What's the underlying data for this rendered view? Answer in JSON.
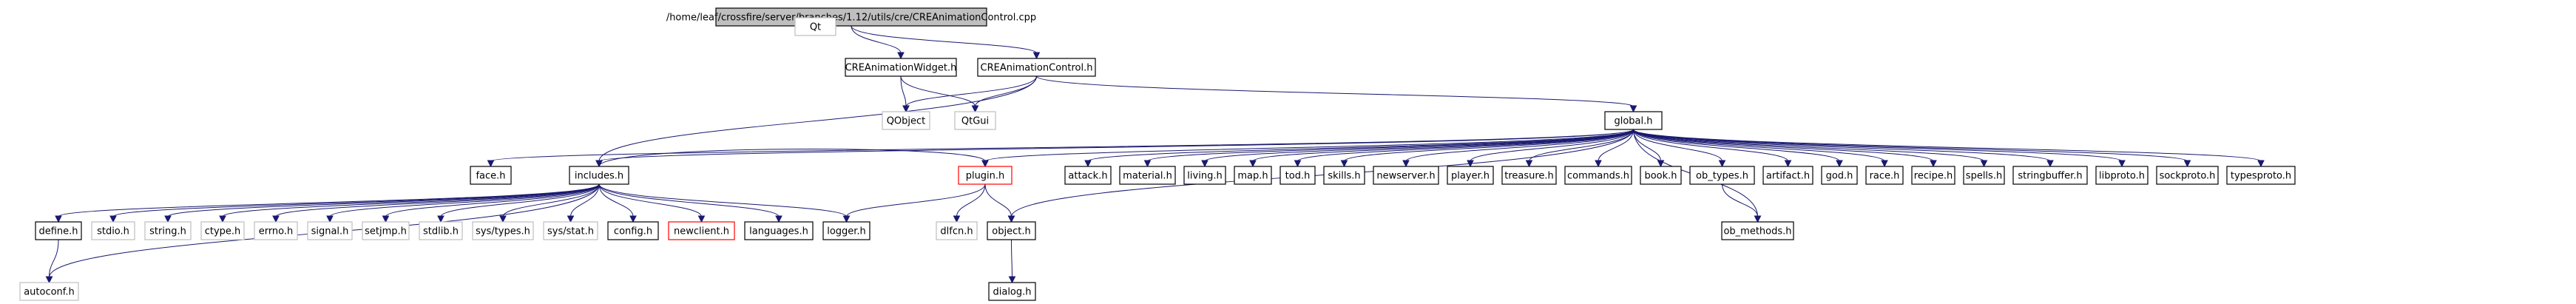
{
  "nodes": [
    {
      "id": "root",
      "label": "/home/leaf/crossfire/server/branches/1.12/utils/cre/CREAnimationControl.cpp",
      "style": "root"
    },
    {
      "id": "qt",
      "label": "Qt",
      "style": "undoc"
    },
    {
      "id": "crewidget",
      "label": "CREAnimationWidget.h",
      "style": "normal"
    },
    {
      "id": "crecontrol",
      "label": "CREAnimationControl.h",
      "style": "normal"
    },
    {
      "id": "qobject",
      "label": "QObject",
      "style": "undoc"
    },
    {
      "id": "qtgui",
      "label": "QtGui",
      "style": "undoc"
    },
    {
      "id": "global",
      "label": "global.h",
      "style": "normal"
    },
    {
      "id": "face",
      "label": "face.h",
      "style": "normal"
    },
    {
      "id": "includes",
      "label": "includes.h",
      "style": "normal"
    },
    {
      "id": "plugin",
      "label": "plugin.h",
      "style": "red"
    },
    {
      "id": "attack",
      "label": "attack.h",
      "style": "normal"
    },
    {
      "id": "material",
      "label": "material.h",
      "style": "normal"
    },
    {
      "id": "living",
      "label": "living.h",
      "style": "normal"
    },
    {
      "id": "map",
      "label": "map.h",
      "style": "normal"
    },
    {
      "id": "tod",
      "label": "tod.h",
      "style": "normal"
    },
    {
      "id": "skills",
      "label": "skills.h",
      "style": "normal"
    },
    {
      "id": "newserver",
      "label": "newserver.h",
      "style": "normal"
    },
    {
      "id": "player",
      "label": "player.h",
      "style": "normal"
    },
    {
      "id": "treasure",
      "label": "treasure.h",
      "style": "normal"
    },
    {
      "id": "commands",
      "label": "commands.h",
      "style": "normal"
    },
    {
      "id": "book",
      "label": "book.h",
      "style": "normal"
    },
    {
      "id": "obtypes",
      "label": "ob_types.h",
      "style": "normal"
    },
    {
      "id": "artifact",
      "label": "artifact.h",
      "style": "normal"
    },
    {
      "id": "god",
      "label": "god.h",
      "style": "normal"
    },
    {
      "id": "race",
      "label": "race.h",
      "style": "normal"
    },
    {
      "id": "recipe",
      "label": "recipe.h",
      "style": "normal"
    },
    {
      "id": "spells",
      "label": "spells.h",
      "style": "normal"
    },
    {
      "id": "stringbuffer",
      "label": "stringbuffer.h",
      "style": "normal"
    },
    {
      "id": "libproto",
      "label": "libproto.h",
      "style": "normal"
    },
    {
      "id": "sockproto",
      "label": "sockproto.h",
      "style": "normal"
    },
    {
      "id": "typesproto",
      "label": "typesproto.h",
      "style": "normal"
    },
    {
      "id": "define",
      "label": "define.h",
      "style": "normal"
    },
    {
      "id": "stdio",
      "label": "stdio.h",
      "style": "undoc"
    },
    {
      "id": "string",
      "label": "string.h",
      "style": "undoc"
    },
    {
      "id": "ctype",
      "label": "ctype.h",
      "style": "undoc"
    },
    {
      "id": "errno",
      "label": "errno.h",
      "style": "undoc"
    },
    {
      "id": "signal",
      "label": "signal.h",
      "style": "undoc"
    },
    {
      "id": "setjmp",
      "label": "setjmp.h",
      "style": "undoc"
    },
    {
      "id": "stdlib",
      "label": "stdlib.h",
      "style": "undoc"
    },
    {
      "id": "systypes",
      "label": "sys/types.h",
      "style": "undoc"
    },
    {
      "id": "sysstat",
      "label": "sys/stat.h",
      "style": "undoc"
    },
    {
      "id": "config",
      "label": "config.h",
      "style": "normal"
    },
    {
      "id": "newclient",
      "label": "newclient.h",
      "style": "red"
    },
    {
      "id": "languages",
      "label": "languages.h",
      "style": "normal"
    },
    {
      "id": "logger",
      "label": "logger.h",
      "style": "normal"
    },
    {
      "id": "dlfcn",
      "label": "dlfcn.h",
      "style": "undoc"
    },
    {
      "id": "object",
      "label": "object.h",
      "style": "normal"
    },
    {
      "id": "obmethods",
      "label": "ob_methods.h",
      "style": "normal"
    },
    {
      "id": "autoconf",
      "label": "autoconf.h",
      "style": "undoc"
    },
    {
      "id": "dialog",
      "label": "dialog.h",
      "style": "normal"
    }
  ],
  "edges": [
    [
      "root",
      "qt"
    ],
    [
      "root",
      "crewidget"
    ],
    [
      "root",
      "crecontrol"
    ],
    [
      "crewidget",
      "qobject"
    ],
    [
      "crewidget",
      "qtgui"
    ],
    [
      "crecontrol",
      "qobject"
    ],
    [
      "crecontrol",
      "qtgui"
    ],
    [
      "crecontrol",
      "global"
    ],
    [
      "crecontrol",
      "includes"
    ],
    [
      "global",
      "face"
    ],
    [
      "global",
      "includes"
    ],
    [
      "global",
      "plugin"
    ],
    [
      "global",
      "object"
    ],
    [
      "global",
      "attack"
    ],
    [
      "global",
      "material"
    ],
    [
      "global",
      "living"
    ],
    [
      "global",
      "map"
    ],
    [
      "global",
      "tod"
    ],
    [
      "global",
      "skills"
    ],
    [
      "global",
      "newserver"
    ],
    [
      "global",
      "player"
    ],
    [
      "global",
      "treasure"
    ],
    [
      "global",
      "commands"
    ],
    [
      "global",
      "book"
    ],
    [
      "global",
      "obtypes"
    ],
    [
      "global",
      "obmethods"
    ],
    [
      "global",
      "artifact"
    ],
    [
      "global",
      "god"
    ],
    [
      "global",
      "race"
    ],
    [
      "global",
      "recipe"
    ],
    [
      "global",
      "spells"
    ],
    [
      "global",
      "stringbuffer"
    ],
    [
      "global",
      "libproto"
    ],
    [
      "global",
      "sockproto"
    ],
    [
      "global",
      "typesproto"
    ],
    [
      "includes",
      "autoconf"
    ],
    [
      "includes",
      "define"
    ],
    [
      "includes",
      "stdio"
    ],
    [
      "includes",
      "string"
    ],
    [
      "includes",
      "ctype"
    ],
    [
      "includes",
      "errno"
    ],
    [
      "includes",
      "signal"
    ],
    [
      "includes",
      "setjmp"
    ],
    [
      "includes",
      "stdlib"
    ],
    [
      "includes",
      "systypes"
    ],
    [
      "includes",
      "sysstat"
    ],
    [
      "includes",
      "config"
    ],
    [
      "includes",
      "newclient"
    ],
    [
      "includes",
      "languages"
    ],
    [
      "includes",
      "logger"
    ],
    [
      "includes",
      "plugin"
    ],
    [
      "define",
      "autoconf"
    ],
    [
      "plugin",
      "logger"
    ],
    [
      "plugin",
      "dlfcn"
    ],
    [
      "plugin",
      "object"
    ],
    [
      "obtypes",
      "obmethods"
    ],
    [
      "object",
      "dialog"
    ]
  ]
}
